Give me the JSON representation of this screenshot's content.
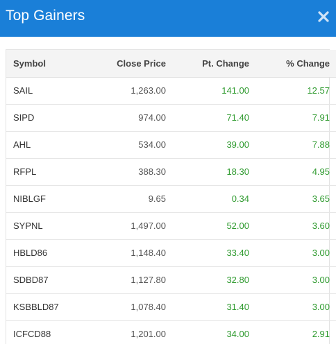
{
  "header": {
    "title": "Top Gainers",
    "close_icon": "close-icon"
  },
  "table": {
    "columns": [
      "Symbol",
      "Close Price",
      "Pt. Change",
      "% Change"
    ],
    "rows": [
      {
        "symbol": "SAIL",
        "close": "1,263.00",
        "pt": "141.00",
        "pct": "12.57"
      },
      {
        "symbol": "SIPD",
        "close": "974.00",
        "pt": "71.40",
        "pct": "7.91"
      },
      {
        "symbol": "AHL",
        "close": "534.00",
        "pt": "39.00",
        "pct": "7.88"
      },
      {
        "symbol": "RFPL",
        "close": "388.30",
        "pt": "18.30",
        "pct": "4.95"
      },
      {
        "symbol": "NIBLGF",
        "close": "9.65",
        "pt": "0.34",
        "pct": "3.65"
      },
      {
        "symbol": "SYPNL",
        "close": "1,497.00",
        "pt": "52.00",
        "pct": "3.60"
      },
      {
        "symbol": "HBLD86",
        "close": "1,148.40",
        "pt": "33.40",
        "pct": "3.00"
      },
      {
        "symbol": "SDBD87",
        "close": "1,127.80",
        "pt": "32.80",
        "pct": "3.00"
      },
      {
        "symbol": "KSBBLD87",
        "close": "1,078.40",
        "pt": "31.40",
        "pct": "3.00"
      },
      {
        "symbol": "ICFCD88",
        "close": "1,201.00",
        "pt": "34.00",
        "pct": "2.91"
      }
    ]
  },
  "colors": {
    "header_bg": "#1a7fd8",
    "positive": "#2e9a2e"
  }
}
